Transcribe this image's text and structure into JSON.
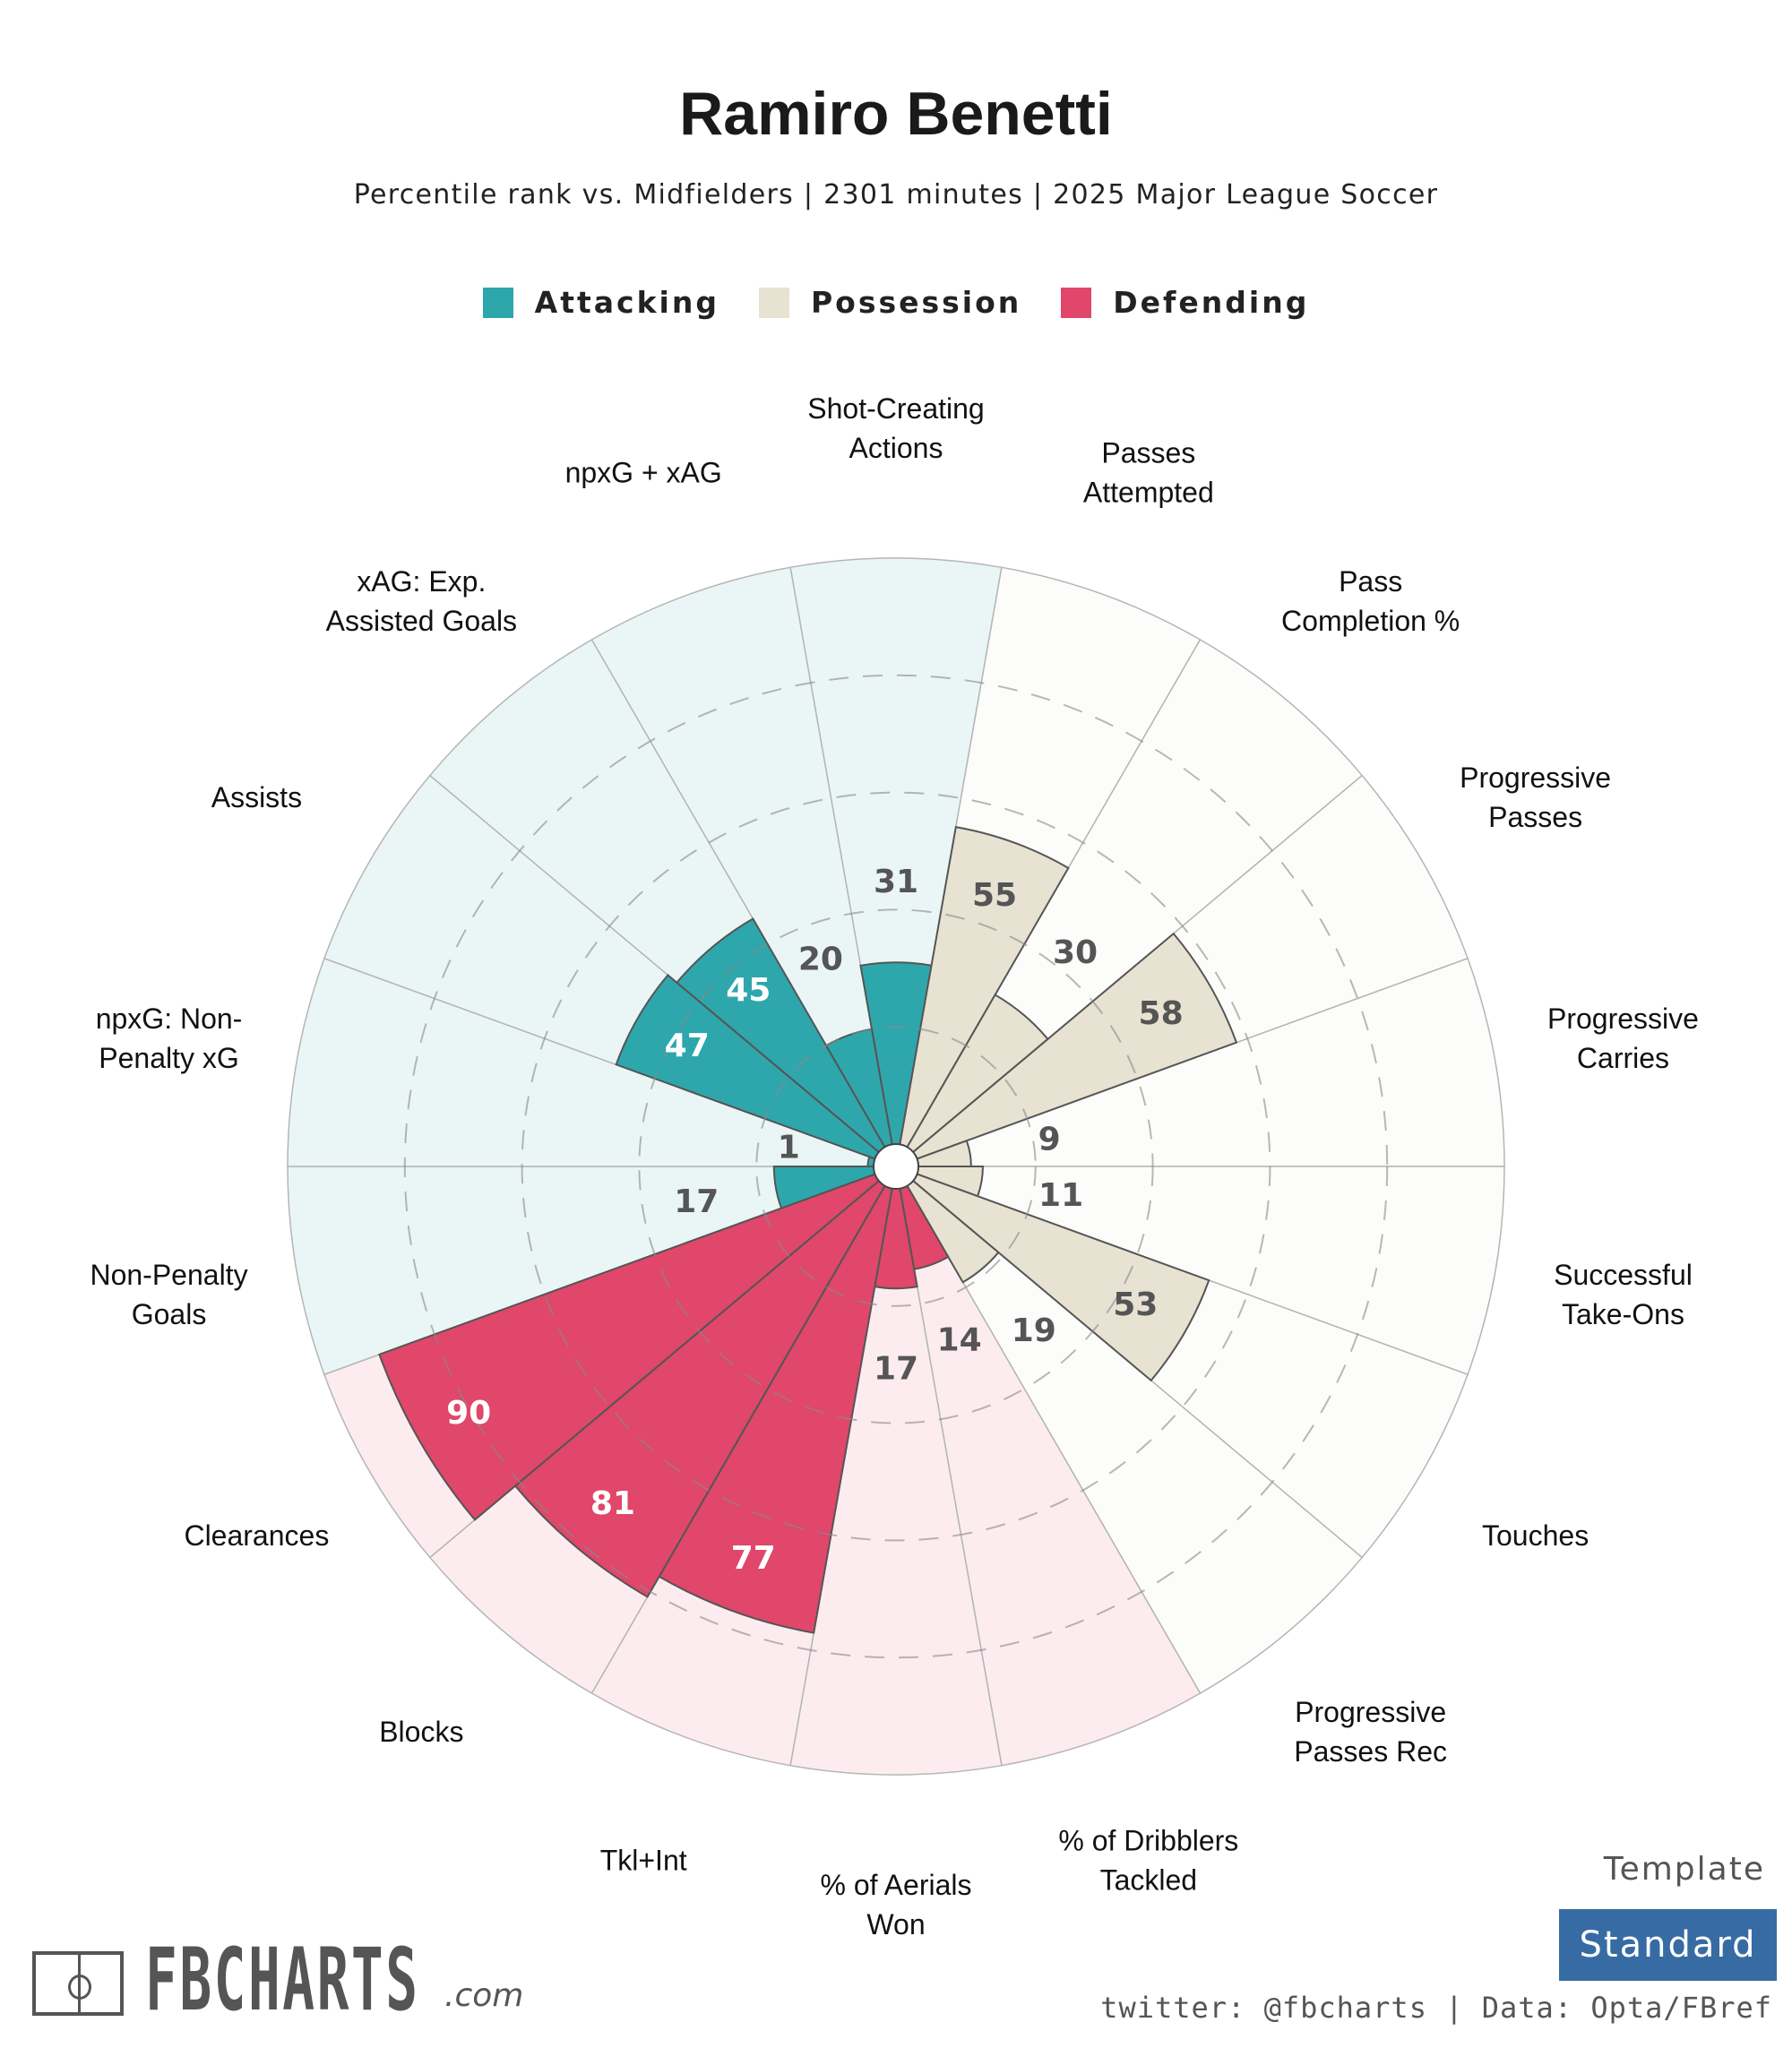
{
  "header": {
    "title": "Ramiro Benetti",
    "subtitle": "Percentile rank vs. Midfielders | 2301 minutes | 2025 Major League Soccer"
  },
  "legend": [
    {
      "label": "Attacking",
      "color": "#2ea7ac"
    },
    {
      "label": "Possession",
      "color": "#e8e2d2"
    },
    {
      "label": "Defending",
      "color": "#e0476a"
    }
  ],
  "chart_data": {
    "type": "polar-bar",
    "title": "Ramiro Benetti",
    "rlim": [
      0,
      100
    ],
    "gridlines": [
      20,
      40,
      60,
      80
    ],
    "groups": {
      "Attacking": {
        "bar": "#2ea7ac",
        "background": "#eaf6f6",
        "label_inside": "#ffffff"
      },
      "Possession": {
        "bar": "#e8e2d2",
        "background": "#fcfcfb",
        "label_inside": "#555555"
      },
      "Defending": {
        "bar": "#e0476a",
        "background": "#fcecf0",
        "label_inside": "#ffffff"
      }
    },
    "categories": [
      {
        "label": "Shot-Creating\nActions",
        "value": 31,
        "group": "Attacking"
      },
      {
        "label": "Passes\nAttempted",
        "value": 55,
        "group": "Possession"
      },
      {
        "label": "Pass\nCompletion %",
        "value": 30,
        "group": "Possession"
      },
      {
        "label": "Progressive\nPasses",
        "value": 58,
        "group": "Possession"
      },
      {
        "label": "Progressive\nCarries",
        "value": 9,
        "group": "Possession"
      },
      {
        "label": "Successful\nTake-Ons",
        "value": 11,
        "group": "Possession"
      },
      {
        "label": "Touches",
        "value": 53,
        "group": "Possession"
      },
      {
        "label": "Progressive\nPasses Rec",
        "value": 19,
        "group": "Possession"
      },
      {
        "label": "% of Dribblers\nTackled",
        "value": 14,
        "group": "Defending"
      },
      {
        "label": "% of Aerials\nWon",
        "value": 17,
        "group": "Defending"
      },
      {
        "label": "Tkl+Int",
        "value": 77,
        "group": "Defending"
      },
      {
        "label": "Blocks",
        "value": 81,
        "group": "Defending"
      },
      {
        "label": "Clearances",
        "value": 90,
        "group": "Defending"
      },
      {
        "label": "Non-Penalty\nGoals",
        "value": 17,
        "group": "Attacking"
      },
      {
        "label": "npxG: Non-\nPenalty xG",
        "value": 1,
        "group": "Attacking"
      },
      {
        "label": "Assists",
        "value": 47,
        "group": "Attacking"
      },
      {
        "label": "xAG: Exp.\nAssisted Goals",
        "value": 45,
        "group": "Attacking"
      },
      {
        "label": "npxG + xAG",
        "value": 20,
        "group": "Attacking"
      }
    ]
  },
  "footer": {
    "logo_text": "FBCHARTS",
    "logo_suffix": ".com",
    "template_label": "Template",
    "template_value": "Standard",
    "credit": "twitter: @fbcharts | Data: Opta/FBref"
  }
}
